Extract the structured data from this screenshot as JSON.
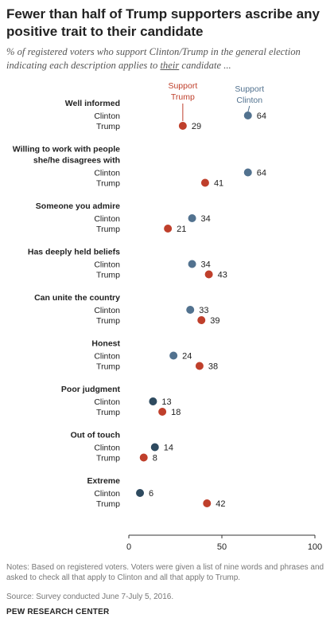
{
  "chart_data": {
    "type": "scatter",
    "title": "Fewer than half of Trump supporters ascribe any positive trait to their candidate",
    "subtitle": {
      "before": "% of registered voters who support Clinton/Trump in the general election indicating each description applies to ",
      "underlined": "their",
      "after": " candidate ..."
    },
    "series_labels": {
      "trump": "Support Trump",
      "clinton": "Support Clinton"
    },
    "row_labels": {
      "clinton": "Clinton",
      "trump": "Trump"
    },
    "categories": [
      {
        "label": "Well informed",
        "clinton": 64,
        "trump": 29
      },
      {
        "label": "Willing to work with people she/he disagrees with",
        "clinton": 64,
        "trump": 41
      },
      {
        "label": "Someone you admire",
        "clinton": 34,
        "trump": 21
      },
      {
        "label": "Has deeply held beliefs",
        "clinton": 34,
        "trump": 43
      },
      {
        "label": "Can unite the country",
        "clinton": 33,
        "trump": 39
      },
      {
        "label": "Honest",
        "clinton": 24,
        "trump": 38
      },
      {
        "label": "Poor judgment",
        "clinton": 13,
        "trump": 18
      },
      {
        "label": "Out of touch",
        "clinton": 14,
        "trump": 8
      },
      {
        "label": "Extreme",
        "clinton": 6,
        "trump": 42
      }
    ],
    "x_ticks": [
      0,
      50,
      100
    ],
    "xlim": [
      0,
      100
    ],
    "grid": false,
    "colors": {
      "trump": "#bf3f2b",
      "clinton": "#52728f",
      "clinton_negative": "#2e4a5f"
    }
  },
  "notes": "Notes: Based on registered voters. Voters were given a list of nine words and phrases and asked to check all that apply to Clinton and all that apply to Trump.",
  "source": "Source: Survey conducted June 7-July 5, 2016.",
  "footer": "PEW RESEARCH CENTER"
}
